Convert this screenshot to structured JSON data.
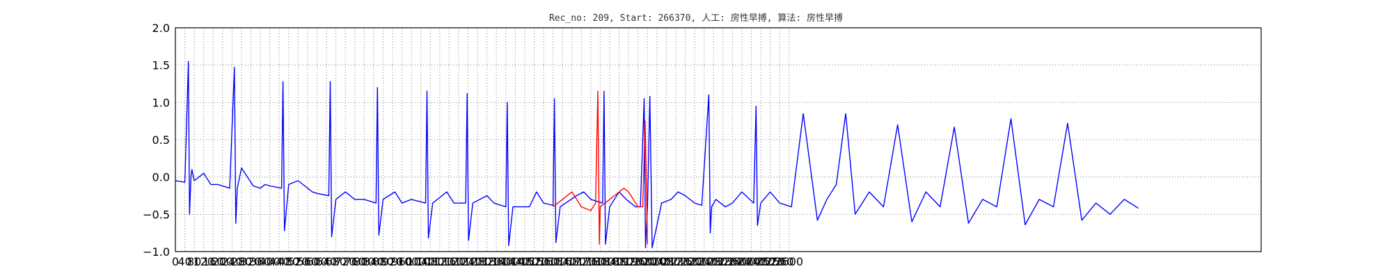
{
  "chart_data": {
    "type": "line",
    "title": "Rec_no: 209, Start: 266370, 人工: 房性早搏, 算法: 房性早搏",
    "xlabel": "",
    "ylabel": "",
    "xlim": [
      0,
      4600
    ],
    "ylim": [
      -1.0,
      2.0
    ],
    "grid": true,
    "y_ticks": [
      -1.0,
      -0.5,
      0.0,
      0.5,
      1.0,
      1.5,
      2.0
    ],
    "y_tick_labels": [
      "−1.0",
      "−0.5",
      "0.0",
      "0.5",
      "1.0",
      "1.5",
      "2.0"
    ],
    "x_ticks": [
      0,
      40,
      80,
      120,
      160,
      200,
      240,
      280,
      320,
      360,
      400,
      440,
      480,
      520,
      560,
      600,
      640,
      680,
      720,
      760,
      800,
      840,
      880,
      920,
      960,
      1000,
      1040,
      1080,
      1120,
      1160,
      1200,
      1240,
      1280,
      1320,
      1360,
      1400,
      1440,
      1480,
      1520,
      1560,
      1600,
      1640,
      1680,
      1720,
      1760,
      1800,
      1840,
      1880,
      1920,
      1960,
      2000,
      2040,
      2080,
      2120,
      2160,
      2200,
      2240,
      2280,
      2320,
      2360,
      2400,
      2440,
      2480,
      2520,
      2560,
      2600
    ],
    "x_tick_labels": [
      "0",
      "40",
      "80",
      "120",
      "160",
      "200",
      "240",
      "280",
      "320",
      "360",
      "400",
      "440",
      "480",
      "520",
      "560",
      "600",
      "640",
      "680",
      "720",
      "760",
      "800",
      "840",
      "880",
      "920",
      "960",
      "1000",
      "1040",
      "1080",
      "1120",
      "1160",
      "1200",
      "1240",
      "1280",
      "1320",
      "1360",
      "1400",
      "1440",
      "1480",
      "1520",
      "1560",
      "1600",
      "1640",
      "1680",
      "1720",
      "1760",
      "1800",
      "1840",
      "1880",
      "1920",
      "1960",
      "2000",
      "2040",
      "2080",
      "2120",
      "2160",
      "2200",
      "2240",
      "2280",
      "2320",
      "2360",
      "2400",
      "2440",
      "2480",
      "2520",
      "2560",
      "2600"
    ],
    "series": [
      {
        "color": "#0000ff",
        "x": [
          0,
          40,
          55,
          60,
          66,
          70,
          80,
          120,
          150,
          180,
          230,
          250,
          256,
          262,
          280,
          330,
          360,
          380,
          400,
          450,
          456,
          462,
          480,
          520,
          580,
          600,
          650,
          656,
          662,
          680,
          720,
          760,
          800,
          850,
          856,
          862,
          880,
          930,
          960,
          1000,
          1060,
          1066,
          1072,
          1090,
          1150,
          1180,
          1230,
          1236,
          1242,
          1260,
          1320,
          1350,
          1400,
          1406,
          1412,
          1430,
          1500,
          1530,
          1560,
          1600,
          1606,
          1612,
          1630,
          1700,
          1730,
          1760,
          1810,
          1816,
          1822,
          1840,
          1880,
          1910,
          1950,
          1970,
          1986,
          1992,
          2000
        ],
        "y": [
          -0.05,
          -0.07,
          1.55,
          -0.5,
          0.0,
          0.1,
          -0.05,
          0.05,
          -0.1,
          -0.1,
          -0.15,
          1.47,
          -0.62,
          -0.15,
          0.12,
          -0.12,
          -0.15,
          -0.1,
          -0.12,
          -0.15,
          1.28,
          -0.72,
          -0.1,
          -0.05,
          -0.2,
          -0.22,
          -0.25,
          1.28,
          -0.8,
          -0.3,
          -0.2,
          -0.3,
          -0.3,
          -0.35,
          1.2,
          -0.78,
          -0.3,
          -0.2,
          -0.35,
          -0.3,
          -0.35,
          1.15,
          -0.82,
          -0.35,
          -0.2,
          -0.35,
          -0.35,
          1.12,
          -0.85,
          -0.35,
          -0.25,
          -0.35,
          -0.4,
          1.0,
          -0.92,
          -0.4,
          -0.4,
          -0.2,
          -0.35,
          -0.38,
          1.05,
          -0.88,
          -0.4,
          -0.25,
          -0.2,
          -0.3,
          -0.35,
          1.15,
          -0.9,
          -0.4,
          -0.2,
          -0.3,
          -0.4,
          -0.4,
          1.05,
          -0.95,
          -0.4
        ]
      },
      {
        "color": "#ff0000",
        "x": [
          1600,
          1640,
          1680,
          1720,
          1760,
          1780,
          1790,
          1796,
          1800,
          1820,
          1860,
          1900,
          1920,
          1960,
          1980,
          1990,
          2000
        ],
        "y": [
          -0.4,
          -0.3,
          -0.2,
          -0.4,
          -0.45,
          -0.35,
          1.15,
          -0.9,
          -0.4,
          -0.35,
          -0.25,
          -0.15,
          -0.2,
          -0.4,
          -0.4,
          0.75,
          -0.9
        ]
      },
      {
        "color": "#0000ff",
        "x": [
          2000,
          2010,
          2020,
          2060,
          2100,
          2130,
          2160,
          2200,
          2230,
          2260,
          2266,
          2272,
          2290,
          2330,
          2360,
          2400,
          2450,
          2460,
          2466,
          2480,
          2520,
          2560,
          2610,
          2660,
          2720,
          2760,
          2800,
          2840,
          2880,
          2940,
          3000,
          3060,
          3120,
          3180,
          3240,
          3300,
          3360,
          3420,
          3480,
          3540,
          3600,
          3660,
          3720,
          3780,
          3840,
          3900,
          3960,
          4020,
          4080
        ],
        "y": [
          -0.4,
          1.08,
          -0.95,
          -0.35,
          -0.3,
          -0.2,
          -0.25,
          -0.35,
          -0.38,
          1.1,
          -0.75,
          -0.4,
          -0.3,
          -0.4,
          -0.35,
          -0.2,
          -0.35,
          0.95,
          -0.65,
          -0.35,
          -0.2,
          -0.35,
          -0.4,
          0.85,
          -0.58,
          -0.3,
          -0.1,
          0.85,
          -0.5,
          -0.2,
          -0.4,
          0.7,
          -0.6,
          -0.2,
          -0.4,
          0.67,
          -0.62,
          -0.3,
          -0.4,
          0.78,
          -0.64,
          -0.3,
          -0.4,
          0.72,
          -0.58,
          -0.35,
          -0.5,
          -0.3,
          -0.42
        ]
      }
    ]
  }
}
